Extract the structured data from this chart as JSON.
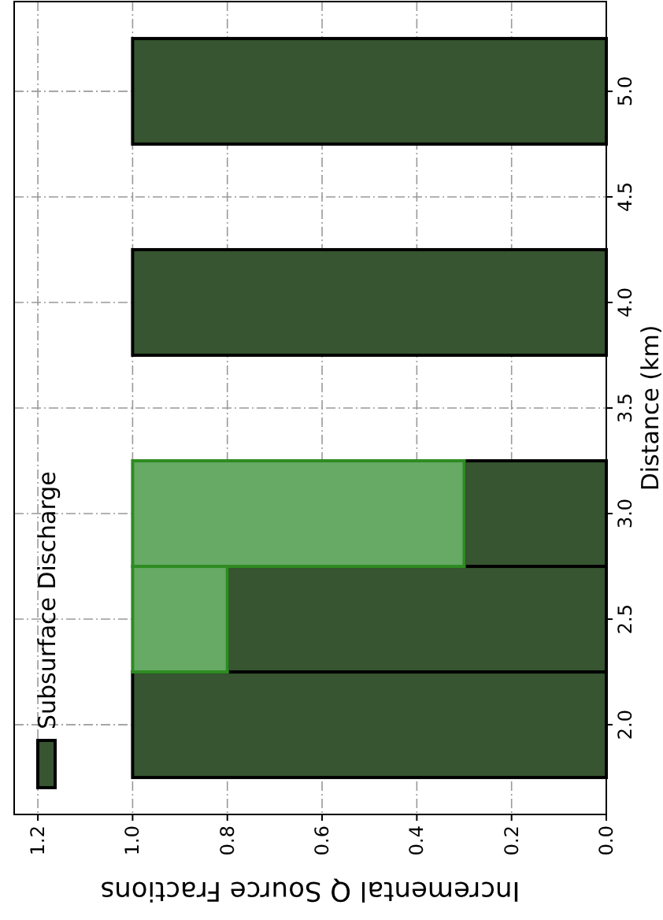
{
  "chart_data": {
    "type": "bar",
    "orientation": "horizontal",
    "stacked": true,
    "xlabel": "Incremental Q Source Fractions",
    "ylabel": "Distance (km)",
    "x": [
      2.0,
      2.5,
      3.0,
      4.0,
      5.0
    ],
    "series": [
      {
        "name": "Subsurface Discharge",
        "color": "#365530",
        "values": [
          1.0,
          0.8,
          0.3,
          1.0,
          1.0
        ]
      },
      {
        "color": "#66aa66",
        "values": [
          null,
          0.2,
          0.7,
          null,
          null
        ]
      }
    ],
    "xlim": [
      1.25,
      0
    ],
    "xticks": [
      {
        "value": 1.2,
        "label": "1.2"
      },
      {
        "value": 1.0,
        "label": "1.0"
      },
      {
        "value": 0.8,
        "label": "0.8"
      },
      {
        "value": 0.6,
        "label": "0.6"
      },
      {
        "value": 0.4,
        "label": "0.4"
      },
      {
        "value": 0.2,
        "label": "0.2"
      },
      {
        "value": 0,
        "label": "0.0"
      }
    ],
    "ylim": [
      1.575,
      5.425
    ],
    "yticks": [
      {
        "value": 2,
        "label": "2.0"
      },
      {
        "value": 2.5,
        "label": "2.5"
      },
      {
        "value": 3,
        "label": "3.0"
      },
      {
        "value": 3.5,
        "label": "3.5"
      },
      {
        "value": 4,
        "label": "4.0"
      },
      {
        "value": 4.5,
        "label": "4.5"
      },
      {
        "value": 5,
        "label": "5.0"
      }
    ],
    "grid": true,
    "legend": "bottom left"
  }
}
